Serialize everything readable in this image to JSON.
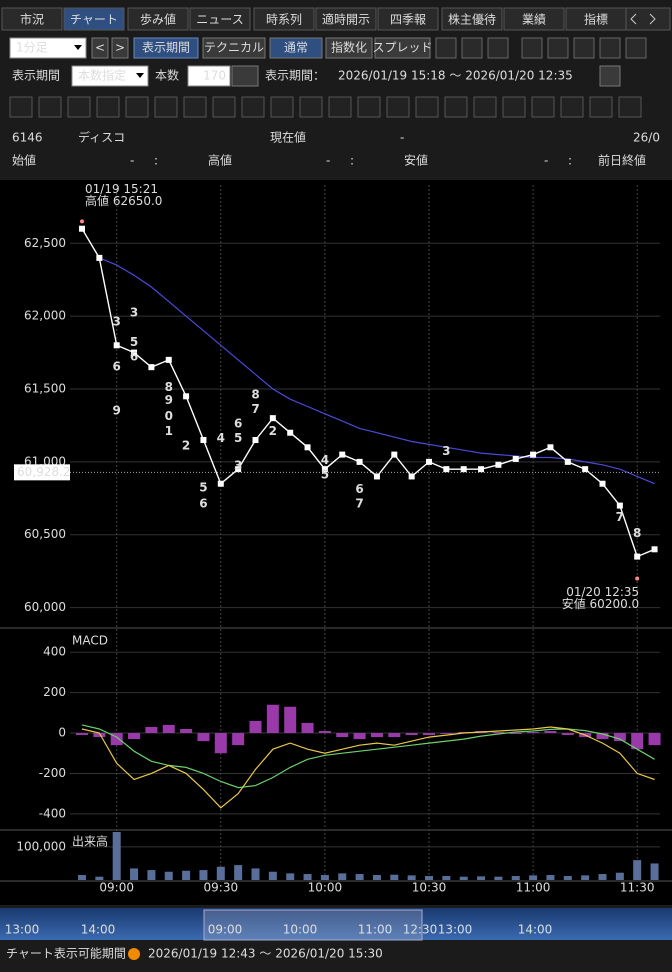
{
  "tabs": [
    "市況",
    "チャート",
    "歩み値",
    "ニュース",
    "時系列",
    "適時開示",
    "四季報",
    "株主優待",
    "業績",
    "指標"
  ],
  "toolbar": {
    "interval": "1分足",
    "prev": "<",
    "next": ">",
    "period_button": "表示期間",
    "technical": "テクニカル",
    "modes": [
      "通常",
      "指数化",
      "スプレッド"
    ]
  },
  "period_row": {
    "label": "表示期間",
    "mode": "本数指定",
    "count_label": "本数",
    "count": 170,
    "range_label": "表示期間：",
    "range": "2026/01/19 15:18 〜 2026/01/20 12:35"
  },
  "quote": {
    "code": "6146",
    "name": "ディスコ",
    "current_label": "現在値",
    "current": "-",
    "date": "26/0",
    "fields": [
      {
        "label": "始値",
        "value": "-",
        "time": ":"
      },
      {
        "label": "高値",
        "value": "-",
        "time": ":"
      },
      {
        "label": "安値",
        "value": "-",
        "time": ":"
      },
      {
        "label": "前日終値"
      }
    ]
  },
  "chart_data": [
    {
      "type": "line",
      "categories": [
        null,
        null,
        "09:00",
        null,
        null,
        null,
        null,
        null,
        "09:30",
        null,
        null,
        null,
        null,
        null,
        "10:00",
        null,
        null,
        null,
        null,
        null,
        "10:30",
        null,
        null,
        null,
        null,
        null,
        "11:00",
        null,
        null,
        null,
        null,
        null,
        "11:30",
        null
      ],
      "series": [
        {
          "color": "#ffffff",
          "values": [
            62600,
            62400,
            61800,
            61750,
            61650,
            61700,
            61450,
            61150,
            60850,
            60950,
            61150,
            61300,
            61200,
            61100,
            60950,
            61050,
            61000,
            60900,
            61050,
            60900,
            61000,
            60950,
            60950,
            60950,
            60980,
            61020,
            61050,
            61100,
            61000,
            60950,
            60850,
            60700,
            60350,
            60400
          ]
        },
        {
          "color": "#4a4ad8",
          "values": [
            null,
            62400,
            62350,
            62280,
            62200,
            62100,
            62000,
            61900,
            61800,
            61700,
            61600,
            61500,
            61430,
            61380,
            61330,
            61280,
            61230,
            61200,
            61170,
            61140,
            61120,
            61100,
            61080,
            61060,
            61050,
            61040,
            61030,
            61030,
            61020,
            61000,
            60980,
            60950,
            60900,
            60850
          ]
        }
      ],
      "ylim": [
        59860,
        62900
      ],
      "yticks": [
        {
          "value": 60000,
          "label": "60,000"
        },
        {
          "value": 60500,
          "label": "60,500"
        },
        {
          "value": 61000,
          "label": "61,000"
        },
        {
          "value": 61500,
          "label": "61,500"
        },
        {
          "value": 62000,
          "label": "62,000"
        },
        {
          "value": 62500,
          "label": "62,500"
        }
      ],
      "last_price": {
        "value": 60928.2,
        "label": "60,928.2"
      },
      "annotations": [
        {
          "x": 0,
          "value": 62650,
          "lines": [
            "01/19 15:21",
            "高値 62650.0"
          ]
        },
        {
          "x": 32,
          "value": 60200,
          "lines": [
            "01/20 12:35",
            "安値 60200.0"
          ]
        }
      ],
      "td_marks": [
        {
          "x": 2,
          "value": 61960,
          "label": "3"
        },
        {
          "x": 2,
          "value": 61650,
          "label": "6"
        },
        {
          "x": 2,
          "value": 61350,
          "label": "9"
        },
        {
          "x": 3,
          "value": 62020,
          "label": "3"
        },
        {
          "x": 3,
          "value": 61820,
          "label": "5"
        },
        {
          "x": 3,
          "value": 61720,
          "label": "6"
        },
        {
          "x": 5,
          "value": 61510,
          "label": "8"
        },
        {
          "x": 5,
          "value": 61420,
          "label": "9"
        },
        {
          "x": 5,
          "value": 61310,
          "label": "0"
        },
        {
          "x": 5,
          "value": 61210,
          "label": "1"
        },
        {
          "x": 6,
          "value": 61110,
          "label": "2"
        },
        {
          "x": 8,
          "value": 61160,
          "label": "4"
        },
        {
          "x": 7,
          "value": 60820,
          "label": "5"
        },
        {
          "x": 7,
          "value": 60710,
          "label": "6"
        },
        {
          "x": 9,
          "value": 60970,
          "label": "3"
        },
        {
          "x": 9,
          "value": 61160,
          "label": "5"
        },
        {
          "x": 9,
          "value": 61260,
          "label": "6"
        },
        {
          "x": 10,
          "value": 61360,
          "label": "7"
        },
        {
          "x": 10,
          "value": 61460,
          "label": "8"
        },
        {
          "x": 11,
          "value": 61210,
          "label": "2"
        },
        {
          "x": 14,
          "value": 61010,
          "label": "4"
        },
        {
          "x": 14,
          "value": 60910,
          "label": "5"
        },
        {
          "x": 16,
          "value": 60810,
          "label": "6"
        },
        {
          "x": 16,
          "value": 60710,
          "label": "7"
        },
        {
          "x": 21,
          "value": 61070,
          "label": "3"
        },
        {
          "x": 31,
          "value": 60620,
          "label": "7"
        },
        {
          "x": 32,
          "value": 60510,
          "label": "8"
        }
      ]
    },
    {
      "type": "macd",
      "title": "MACD",
      "ylim": [
        -470,
        500
      ],
      "yticks": [
        -400,
        -200,
        0,
        200,
        400
      ],
      "series": [
        {
          "color": "#e8c84a",
          "values": [
            20,
            0,
            -150,
            -230,
            -200,
            -160,
            -200,
            -280,
            -370,
            -300,
            -180,
            -80,
            -50,
            -80,
            -100,
            -80,
            -60,
            -50,
            -60,
            -40,
            -20,
            -10,
            0,
            5,
            10,
            15,
            20,
            30,
            20,
            -10,
            -50,
            -100,
            -200,
            -230
          ]
        },
        {
          "color": "#6ccf6c",
          "values": [
            40,
            20,
            -20,
            -90,
            -140,
            -160,
            -170,
            -200,
            -240,
            -270,
            -260,
            -220,
            -170,
            -130,
            -110,
            -100,
            -90,
            -80,
            -70,
            -60,
            -50,
            -40,
            -30,
            -15,
            -5,
            5,
            10,
            18,
            20,
            12,
            -5,
            -30,
            -80,
            -130
          ]
        }
      ],
      "histogram": {
        "color": "#9a3aaa",
        "values": [
          -10,
          -20,
          -60,
          -30,
          30,
          40,
          20,
          -40,
          -100,
          -60,
          60,
          140,
          130,
          50,
          10,
          -20,
          -30,
          -20,
          -20,
          -10,
          -10,
          -5,
          5,
          10,
          5,
          -5,
          5,
          10,
          -10,
          -20,
          -30,
          -40,
          -80,
          -60
        ]
      }
    },
    {
      "type": "bar",
      "title": "出来高",
      "color": "#5a6e9a",
      "ylim": [
        0,
        145000
      ],
      "yticks": [
        {
          "value": 100000,
          "label": "100,000"
        }
      ],
      "values": [
        15000,
        10000,
        145000,
        35000,
        30000,
        25000,
        28000,
        30000,
        40000,
        45000,
        35000,
        25000,
        20000,
        18000,
        15000,
        20000,
        18000,
        15000,
        16000,
        14000,
        12000,
        12000,
        10000,
        11000,
        10000,
        12000,
        14000,
        15000,
        12000,
        14000,
        18000,
        22000,
        60000,
        50000
      ]
    }
  ],
  "navigator": {
    "labels": [
      "13:00",
      "14:00",
      "09:00",
      "10:00",
      "11:00",
      "12:30",
      "13:00",
      "14:00"
    ]
  },
  "footer": {
    "label": "チャート表示可能期間",
    "range": "2026/01/19 12:43 〜 2026/01/20 15:30"
  }
}
